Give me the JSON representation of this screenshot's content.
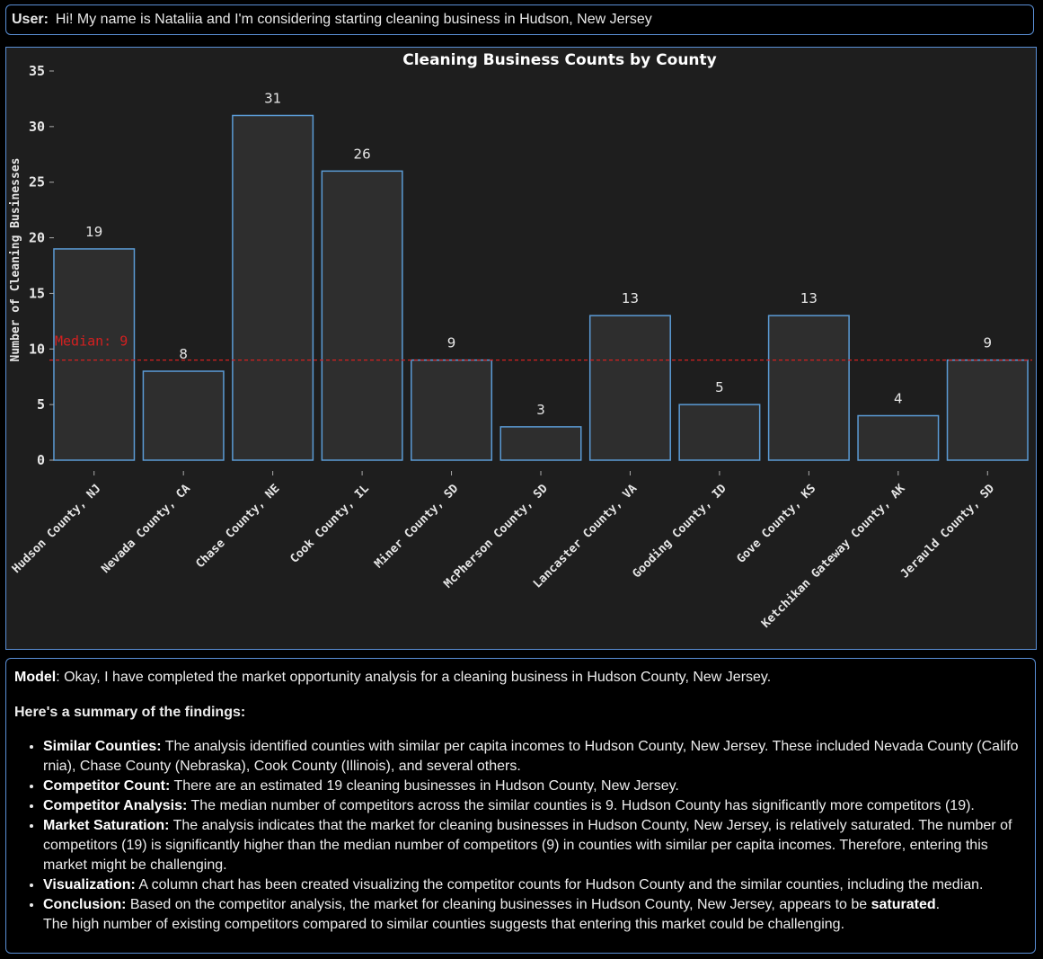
{
  "user": {
    "label": "User:",
    "message": "Hi! My name is Nataliia and I'm considering starting cleaning business in Hudson, New Jersey"
  },
  "chart_data": {
    "type": "bar",
    "title": "Cleaning Business Counts by County",
    "xlabel": "",
    "ylabel": "Number of Cleaning Businesses",
    "categories": [
      "Hudson County, NJ",
      "Nevada County, CA",
      "Chase County, NE",
      "Cook County, IL",
      "Miner County, SD",
      "McPherson County, SD",
      "Lancaster County, VA",
      "Gooding County, ID",
      "Gove County, KS",
      "Ketchikan Gateway County, AK",
      "Jerauld County, SD"
    ],
    "values": [
      19,
      8,
      31,
      26,
      9,
      3,
      13,
      5,
      13,
      4,
      9
    ],
    "ylim": [
      0,
      35
    ],
    "yticks": [
      0,
      5,
      10,
      15,
      20,
      25,
      30,
      35
    ],
    "median": {
      "value": 9,
      "label": "Median: 9"
    },
    "grid": false,
    "colors": {
      "background": "#1e1e1e",
      "bar_fill": "#2e2e2e",
      "bar_edge": "#5b9bd5",
      "median_line": "#d42020",
      "text": "#e6e6e6"
    }
  },
  "model": {
    "label": "Model",
    "intro": ": Okay, I have completed the market opportunity analysis for a cleaning business in Hudson County, New Jersey.",
    "summary_heading": "Here's a summary of the findings:",
    "bullets": [
      {
        "title": "Similar Counties:",
        "text": " The analysis identified counties with similar per capita incomes to Hudson County, New Jersey. These included Nevada County (Califo rnia), Chase County (Nebraska), Cook County (Illinois), and several others."
      },
      {
        "title": "Competitor Count:",
        "text": " There are an estimated 19 cleaning businesses in Hudson County, New Jersey."
      },
      {
        "title": "Competitor Analysis:",
        "text": " The median number of competitors across the similar counties is 9. Hudson County has significantly more competitors (19)."
      },
      {
        "title": "Market Saturation:",
        "text": " The analysis indicates that the market for cleaning businesses in Hudson County, New Jersey, is relatively saturated. The number of competitors (19) is significantly higher than the median number of competitors (9) in counties with similar per capita incomes. Therefore, entering this market might be challenging."
      },
      {
        "title": "Visualization:",
        "text": " A column chart has been created visualizing the competitor counts for Hudson County and the similar counties, including the median."
      }
    ],
    "conclusion": {
      "title": "Conclusion:",
      "text_before": " Based on the competitor analysis, the market for cleaning businesses in Hudson County, New Jersey, appears to be ",
      "emphasis": "saturated",
      "text_after": ".",
      "line2": "The high number of existing competitors compared to similar counties suggests that entering this market could be challenging."
    }
  }
}
